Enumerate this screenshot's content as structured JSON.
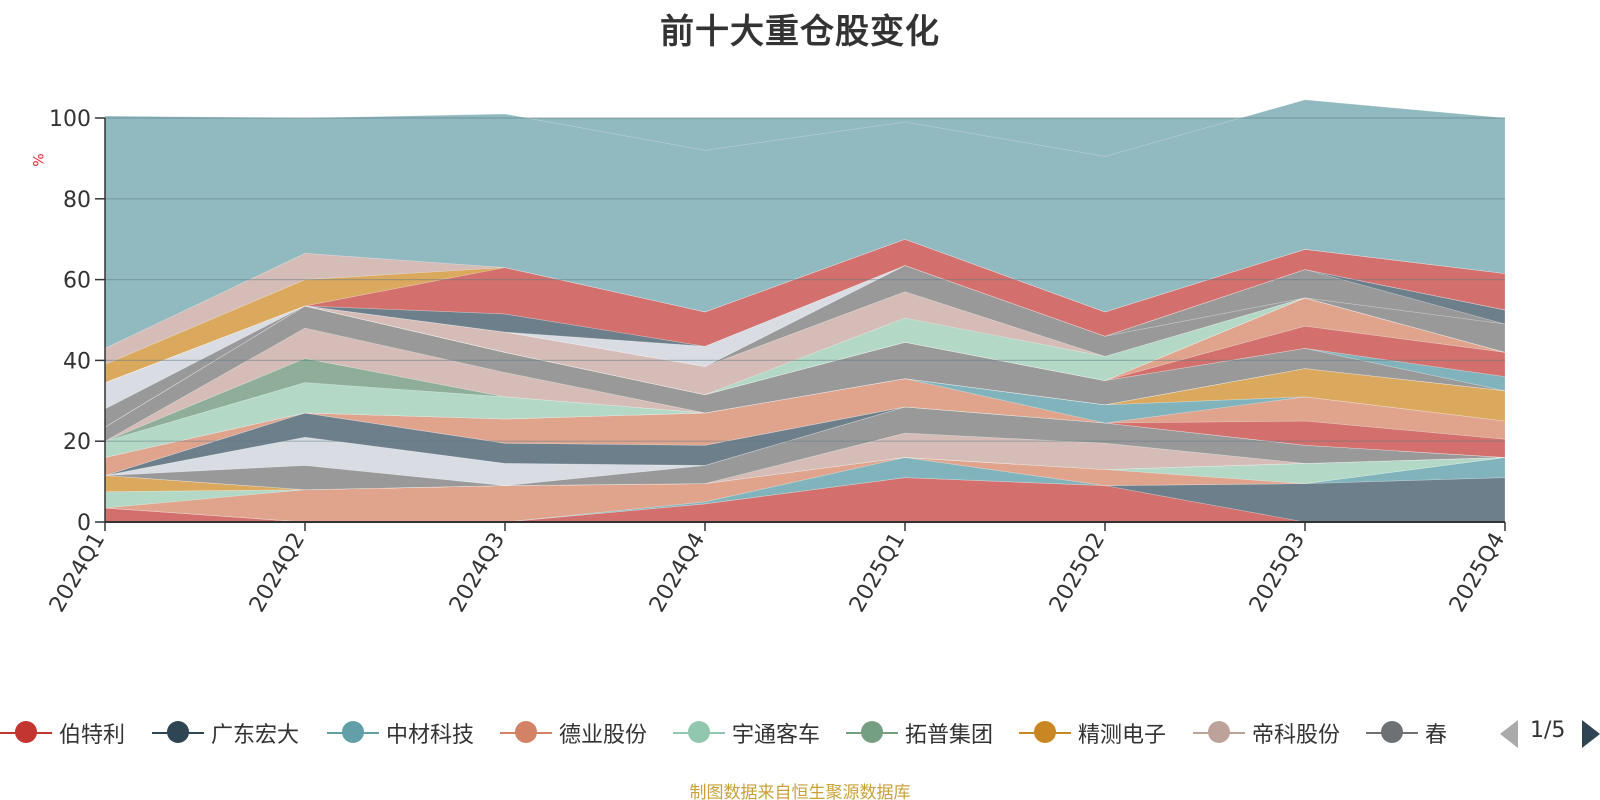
{
  "chart_data": {
    "type": "area",
    "title": "前十大重仓股变化",
    "ylabel": "%",
    "ylim": [
      0,
      100
    ],
    "yticks": [
      0,
      20,
      40,
      60,
      80,
      100
    ],
    "categories": [
      "2024Q1",
      "2024Q2",
      "2024Q3",
      "2024Q4",
      "2025Q1",
      "2025Q2",
      "2025Q3",
      "2025Q4"
    ],
    "stacked": true,
    "background_color": "#91b9c0",
    "series": [
      {
        "name": "伯特利",
        "color": "#d36f6c",
        "values": [
          3.5,
          0,
          0,
          4.5,
          11,
          9,
          0,
          0
        ]
      },
      {
        "name": "广东宏大",
        "color": "#6e7f8c",
        "values": [
          0,
          0,
          0,
          0,
          0,
          0,
          9.5,
          11
        ]
      },
      {
        "name": "中材科技",
        "color": "#80b3bb",
        "values": [
          0,
          0,
          0,
          0.5,
          5,
          0,
          0,
          5
        ]
      },
      {
        "name": "德业股份",
        "color": "#e0a48d",
        "values": [
          0,
          8,
          9,
          4.5,
          0,
          4,
          0,
          0
        ]
      },
      {
        "name": "宇通客车",
        "color": "#b3d8c6",
        "values": [
          4,
          0,
          0,
          0,
          0,
          0,
          5,
          0
        ]
      },
      {
        "name": "拓普集团",
        "color": "#8fae99",
        "values": [
          0,
          0,
          0,
          0,
          0,
          0,
          0,
          0
        ]
      },
      {
        "name": "精测电子",
        "color": "#dba95e",
        "values": [
          4,
          0,
          0,
          0,
          0,
          0,
          0,
          0
        ]
      },
      {
        "name": "帝科股份",
        "color": "#d6bcb6",
        "values": [
          0,
          0,
          0,
          0,
          6,
          6.5,
          0,
          0
        ]
      },
      {
        "name": "春",
        "color": "#999999",
        "values": [
          0,
          6,
          0,
          4.5,
          6.5,
          5,
          4.5,
          0
        ]
      },
      {
        "name": "",
        "color": "#d9dde3",
        "values": [
          0,
          7,
          5.5,
          0,
          0,
          0,
          0,
          0
        ]
      },
      {
        "name": "",
        "color": "#6e7f8c",
        "values": [
          0,
          6,
          5,
          5,
          0,
          0,
          0,
          0
        ]
      },
      {
        "name": "",
        "color": "#d36f6c",
        "values": [
          0,
          0,
          0,
          0,
          0,
          0,
          6,
          4.5
        ]
      },
      {
        "name": "",
        "color": "#e0a48d",
        "values": [
          4.5,
          0,
          6,
          8,
          7,
          0,
          6,
          4.5
        ]
      },
      {
        "name": "",
        "color": "#80b3bb",
        "values": [
          0,
          0,
          0,
          0,
          0,
          4.5,
          0,
          0
        ]
      },
      {
        "name": "",
        "color": "#dba95e",
        "values": [
          0,
          0,
          0,
          0,
          0,
          0,
          7,
          7.5
        ]
      },
      {
        "name": "",
        "color": "#b3d8c6",
        "values": [
          4,
          7.5,
          5.5,
          0,
          0,
          0,
          0,
          0
        ]
      },
      {
        "name": "",
        "color": "#8fae99",
        "values": [
          0,
          6,
          0,
          0,
          0,
          0,
          0,
          0
        ]
      },
      {
        "name": "",
        "color": "#d6bcb6",
        "values": [
          0,
          7.5,
          6,
          0,
          0,
          0,
          0,
          0
        ]
      },
      {
        "name": "",
        "color": "#999999",
        "values": [
          3.5,
          5.5,
          5,
          4.5,
          9,
          6,
          5,
          0
        ]
      },
      {
        "name": "",
        "color": "#80b3bb",
        "values": [
          0,
          0,
          0,
          0,
          0,
          0,
          0,
          3.5
        ]
      },
      {
        "name": "",
        "color": "#d36f6c",
        "values": [
          0,
          0,
          0,
          0,
          0,
          0,
          5.5,
          6
        ]
      },
      {
        "name": "",
        "color": "#e0a48d",
        "values": [
          0,
          0,
          0,
          0,
          0,
          0,
          7,
          0
        ]
      },
      {
        "name": "",
        "color": "#999999",
        "values": [
          4.5,
          0,
          0,
          0,
          0,
          0,
          0,
          0
        ]
      },
      {
        "name": "",
        "color": "#d9dde3",
        "values": [
          6.5,
          0,
          0,
          0,
          0,
          0,
          0,
          0
        ]
      },
      {
        "name": "",
        "color": "#b3d8c6",
        "values": [
          0,
          0,
          0,
          0,
          6,
          6,
          0,
          0
        ]
      },
      {
        "name": "",
        "color": "#d6bcb6",
        "values": [
          0,
          0,
          5,
          7,
          6.5,
          0,
          0,
          0
        ]
      },
      {
        "name": "",
        "color": "#999999",
        "values": [
          0,
          0,
          0,
          0,
          6.5,
          5,
          0,
          7
        ]
      },
      {
        "name": "",
        "color": "#999999",
        "values": [
          0,
          0,
          0,
          0,
          0,
          0,
          7,
          0
        ]
      },
      {
        "name": "",
        "color": "#6e7f8c",
        "values": [
          0,
          0,
          0,
          0,
          0,
          0,
          0,
          3.5
        ]
      },
      {
        "name": "",
        "color": "#d9dde3",
        "values": [
          0,
          0,
          0,
          5,
          0,
          0,
          0,
          0
        ]
      },
      {
        "name": "",
        "color": "#6e7f8c",
        "values": [
          0,
          0,
          4.5,
          0,
          0,
          0,
          0,
          0
        ]
      },
      {
        "name": "",
        "color": "#d36f6c",
        "values": [
          0,
          0,
          11.5,
          8.5,
          6.5,
          6,
          5,
          9
        ]
      },
      {
        "name": "",
        "color": "#dba95e",
        "values": [
          4.5,
          6.5,
          0,
          0,
          0,
          0,
          0,
          0
        ]
      },
      {
        "name": "",
        "color": "#d6bcb6",
        "values": [
          4,
          6.5,
          0,
          0,
          0,
          0,
          0,
          0
        ]
      },
      {
        "name": "",
        "color": "#91b9c0",
        "values": [
          57.5,
          33.5,
          38,
          40,
          29,
          38.5,
          37,
          38.5
        ]
      }
    ],
    "grid": true,
    "legend_position": "bottom",
    "source_note": "制图数据来自恒生聚源数据库"
  },
  "legend": {
    "items": [
      {
        "label": "伯特利",
        "color": "#c23531"
      },
      {
        "label": "广东宏大",
        "color": "#2f4554"
      },
      {
        "label": "中材科技",
        "color": "#61a0a8"
      },
      {
        "label": "德业股份",
        "color": "#d48265"
      },
      {
        "label": "宇通客车",
        "color": "#91c7ae"
      },
      {
        "label": "拓普集团",
        "color": "#749f83"
      },
      {
        "label": "精测电子",
        "color": "#ca8622"
      },
      {
        "label": "帝科股份",
        "color": "#bda29a"
      },
      {
        "label": "春",
        "color": "#6e7074"
      }
    ],
    "page_text": "1/5"
  }
}
